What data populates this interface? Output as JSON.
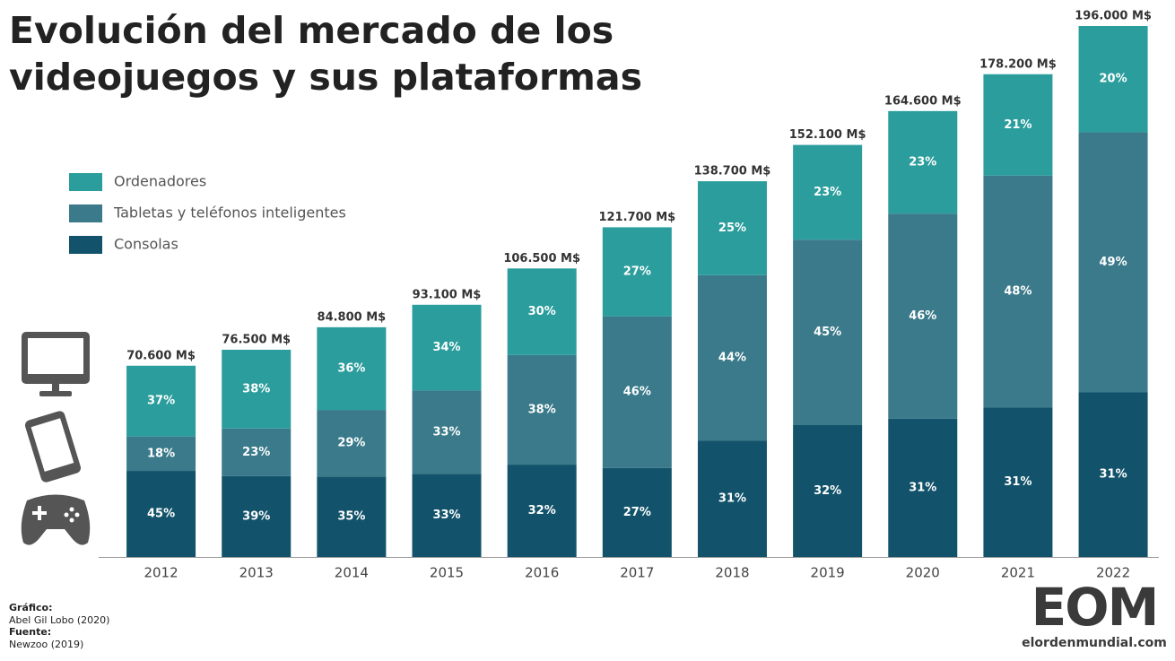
{
  "chart_data": {
    "type": "stacked_bar",
    "title": "Evolución del mercado de los videojuegos y sus plataformas",
    "categories": [
      "2012",
      "2013",
      "2014",
      "2015",
      "2016",
      "2017",
      "2018",
      "2019",
      "2020",
      "2021",
      "2022"
    ],
    "totals": {
      "values": [
        70600,
        76500,
        84800,
        93100,
        106500,
        121700,
        138700,
        152100,
        164600,
        178200,
        196000
      ],
      "value_labels": [
        "70.600 M$",
        "76.500 M$",
        "84.800 M$",
        "93.100 M$",
        "106.500 M$",
        "121.700 M$",
        "138.700 M$",
        "152.100 M$",
        "164.600 M$",
        "178.200 M$",
        "196.000 M$"
      ]
    },
    "series": [
      {
        "name": "Consolas",
        "color": "#12536b",
        "values": [
          45,
          39,
          35,
          33,
          32,
          27,
          31,
          32,
          31,
          31,
          31
        ],
        "value_labels": [
          "45%",
          "39%",
          "35%",
          "33%",
          "32%",
          "27%",
          "31%",
          "32%",
          "31%",
          "31%",
          "31%"
        ]
      },
      {
        "name": "Tabletas y teléfonos inteligentes",
        "color": "#3a7a8a",
        "values": [
          18,
          23,
          29,
          33,
          38,
          46,
          44,
          45,
          46,
          48,
          49
        ],
        "value_labels": [
          "18%",
          "23%",
          "29%",
          "33%",
          "38%",
          "46%",
          "44%",
          "45%",
          "46%",
          "48%",
          "49%"
        ]
      },
      {
        "name": "Ordenadores",
        "color": "#2a9d9c",
        "values": [
          37,
          38,
          36,
          34,
          30,
          27,
          25,
          23,
          23,
          21,
          20
        ],
        "value_labels": [
          "37%",
          "38%",
          "36%",
          "34%",
          "30%",
          "27%",
          "25%",
          "23%",
          "23%",
          "21%",
          "20%"
        ]
      }
    ]
  },
  "credits": {
    "graphic_label": "Gráfico:",
    "graphic": "Abel Gil Lobo (2020)",
    "source_label": "Fuente:",
    "source": "Newzoo (2019)"
  },
  "logo": {
    "mark": "EOM",
    "site": "elordenmundial.com"
  }
}
